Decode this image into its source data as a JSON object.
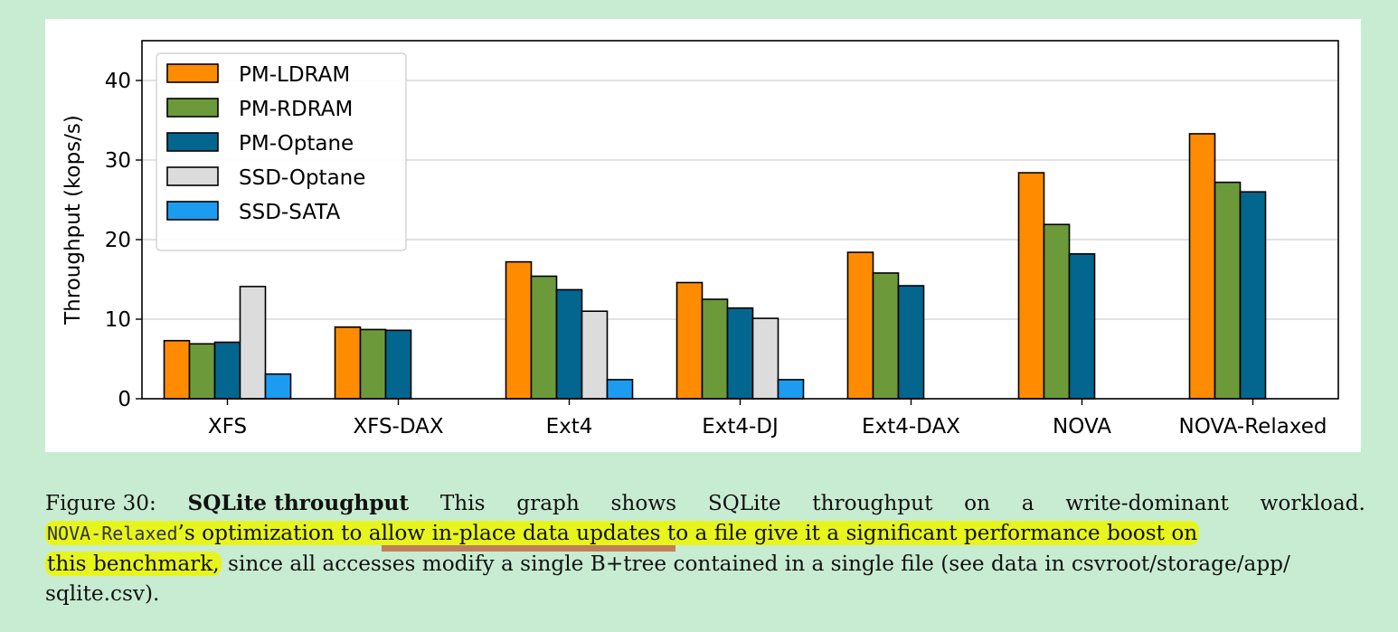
{
  "chart_data": {
    "type": "bar",
    "ylabel": "Throughput (kops/s)",
    "ylim": [
      0,
      45
    ],
    "yticks": [
      0,
      10,
      20,
      30,
      40
    ],
    "grid": "y",
    "legend_position": "top-left",
    "categories": [
      "XFS",
      "XFS-DAX",
      "Ext4",
      "Ext4-DJ",
      "Ext4-DAX",
      "NOVA",
      "NOVA-Relaxed"
    ],
    "series": [
      {
        "name": "PM-LDRAM",
        "color": "#ff8c00",
        "values": [
          7.3,
          9.0,
          17.2,
          14.6,
          18.4,
          28.4,
          33.3
        ]
      },
      {
        "name": "PM-RDRAM",
        "color": "#6c9a3a",
        "values": [
          6.9,
          8.7,
          15.4,
          12.5,
          15.8,
          21.9,
          27.2
        ]
      },
      {
        "name": "PM-Optane",
        "color": "#02668f",
        "values": [
          7.1,
          8.6,
          13.7,
          11.4,
          14.2,
          18.2,
          26.0
        ]
      },
      {
        "name": "SSD-Optane",
        "color": "#dcdcdc",
        "values": [
          14.1,
          0,
          11.0,
          10.1,
          0,
          0,
          0
        ]
      },
      {
        "name": "SSD-SATA",
        "color": "#1b9cf0",
        "values": [
          3.1,
          0,
          2.4,
          2.4,
          0,
          0,
          0
        ]
      }
    ]
  },
  "caption": {
    "figure_label": "Figure 30:",
    "title": "SQLite throughput",
    "line1_words": [
      "This",
      "graph",
      "shows",
      "SQLite",
      "throughput",
      "on",
      "a",
      "write-dominant",
      "workload."
    ],
    "code_name": "NOVA-Relaxed",
    "l2_a": "’s optimization to a",
    "l2_b": "llow in-place data updates t",
    "l2_c": "o a file give it a significant performance boost on",
    "l3_a": "this benchmark,",
    "l3_b": " since all accesses modify a single B+tree contained in a single file (see data in csvroot/storage/app/",
    "line4": "sqlite.csv)."
  }
}
